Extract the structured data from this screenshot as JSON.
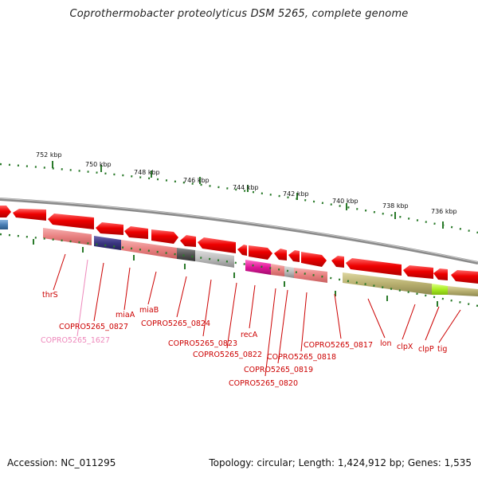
{
  "title": "Coprothermobacter proteolyticus DSM 5265, complete genome",
  "footer": {
    "accession": "Accession: NC_011295",
    "summary": "Topology: circular; Length: 1,424,912 bp; Genes: 1,535"
  },
  "scale_labels": [
    "752 kbp",
    "750 kbp",
    "748 kbp",
    "746 kbp",
    "744 kbp",
    "742 kbp",
    "740 kbp",
    "738 kbp",
    "736 kbp"
  ],
  "gene_labels": [
    {
      "text": "thrS",
      "color": "#cc0000"
    },
    {
      "text": "COPRO5265_0827",
      "color": "#cc0000"
    },
    {
      "text": "COPRO5265_1627",
      "color": "#ee88bb"
    },
    {
      "text": "miaA",
      "color": "#cc0000"
    },
    {
      "text": "miaB",
      "color": "#cc0000"
    },
    {
      "text": "COPRO5265_0824",
      "color": "#cc0000"
    },
    {
      "text": "COPRO5265_0823",
      "color": "#cc0000"
    },
    {
      "text": "COPRO5265_0822",
      "color": "#cc0000"
    },
    {
      "text": "recA",
      "color": "#cc0000"
    },
    {
      "text": "COPRO5265_0818",
      "color": "#cc0000"
    },
    {
      "text": "COPRO5265_0819",
      "color": "#cc0000"
    },
    {
      "text": "COPRO5265_0820",
      "color": "#cc0000"
    },
    {
      "text": "COPRO5265_0817",
      "color": "#cc0000"
    },
    {
      "text": "lon",
      "color": "#cc0000"
    },
    {
      "text": "clpX",
      "color": "#cc0000"
    },
    {
      "text": "clpP",
      "color": "#cc0000"
    },
    {
      "text": "tig",
      "color": "#cc0000"
    }
  ],
  "colors": {
    "gene_red": "#ee0000",
    "backbone": "#888888",
    "tick_green": "#2a7a2a",
    "label_red": "#cc0000",
    "cog_pink": "#e88080",
    "cog_navy": "#3a3580",
    "cog_magenta": "#e0189a",
    "cog_olive": "#b8b070",
    "cog_lime": "#aaee22",
    "cog_gray": "#999999",
    "cog_dark": "#555555",
    "cog_blue": "#4a7fb5"
  }
}
